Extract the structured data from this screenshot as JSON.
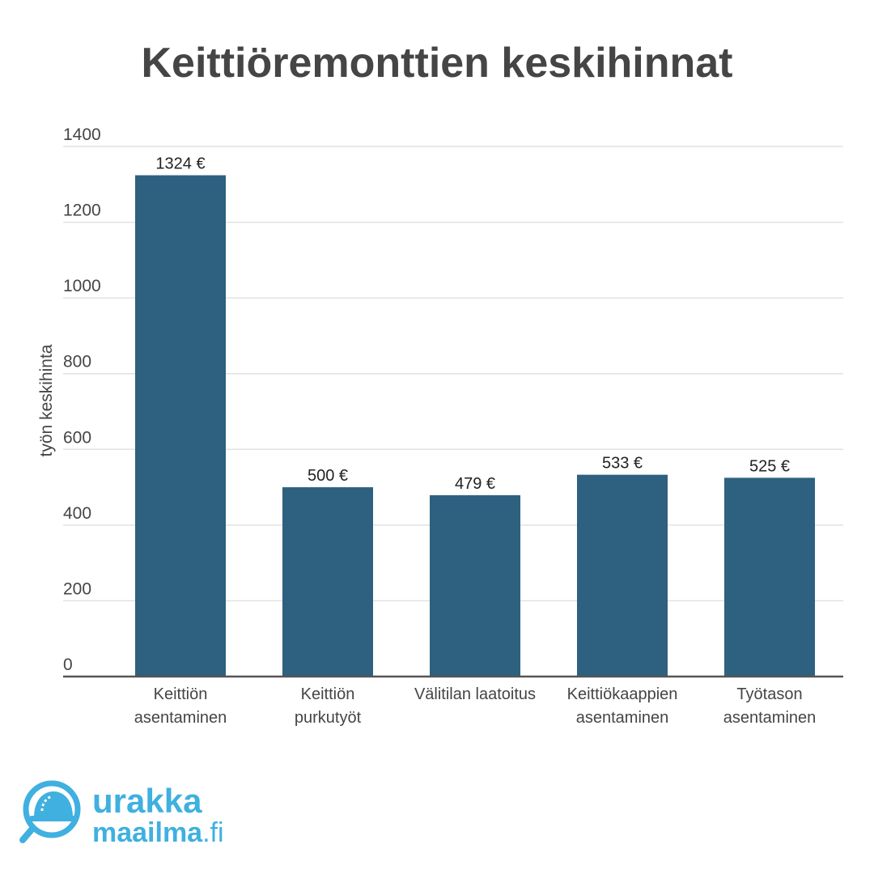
{
  "chart_data": {
    "type": "bar",
    "title": "Keittiöremonttien keskihinnat",
    "ylabel": "työn keskihinta",
    "xlabel": "",
    "ylim": [
      0,
      1400
    ],
    "yticks": [
      "0",
      "200",
      "400",
      "600",
      "800",
      "1000",
      "1200",
      "1400"
    ],
    "categories": [
      [
        "Keittiön",
        "asentaminen"
      ],
      [
        "Keittiön",
        "purkutyöt"
      ],
      [
        "Välitilan laatoitus"
      ],
      [
        "Keittiökaappien",
        "asentaminen"
      ],
      [
        "Työtason",
        "asentaminen"
      ]
    ],
    "values": [
      1324,
      500,
      479,
      533,
      525
    ],
    "value_labels": [
      "1324 €",
      "500 €",
      "479 €",
      "533 €",
      "525 €"
    ],
    "grid": true,
    "legend": "none",
    "colors": {
      "bar": "#2e6080",
      "grid": "#e2e2e2",
      "axis": "#555555",
      "text": "#454545"
    }
  },
  "logo": {
    "line1": "urakka",
    "line2": "maailma",
    "suffix": ".fi",
    "color": "#3fb0e0",
    "icon": "hard-hat-magnifier-icon"
  }
}
